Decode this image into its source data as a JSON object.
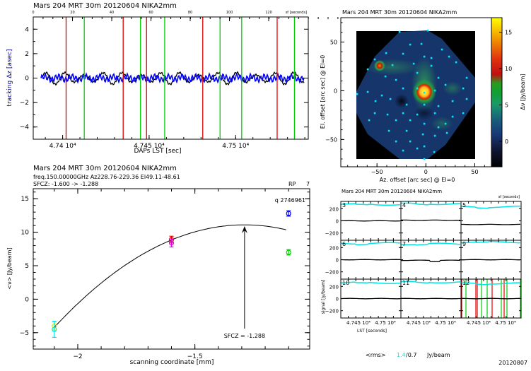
{
  "footer": {
    "rms_label": "<rms>",
    "rms_value_cyan": "1.4",
    "rms_value_rest": "/0.7",
    "rms_unit": "Jy/beam",
    "date": "20120807",
    "rms_color": "#00e5e5"
  },
  "chart_data": [
    {
      "id": "tracking",
      "type": "line",
      "title": "Mars      204 MRT 30m   20120604 NIKA2mm",
      "xlabel": "DAPs LST [sec]",
      "ylabel": "tracking Δz [asec]",
      "xlim": [
        47383,
        47542
      ],
      "ylim": [
        -5,
        5
      ],
      "x_tick_labels": [
        "4.74 10^4",
        "4.745 10^4",
        "4.75 10^4"
      ],
      "x_ticks": [
        47400,
        47450,
        47500
      ],
      "y_ticks": [
        -4,
        -2,
        0,
        2,
        4
      ],
      "top_axis_label": "sf [seconds]",
      "top_axis_ticks": [
        "0",
        "20",
        "40",
        "60",
        "80",
        "100",
        "120"
      ],
      "series": [
        {
          "name": "black trace",
          "color": "#000000",
          "mean": 0.0,
          "amplitude": 0.5
        },
        {
          "name": "blue trace",
          "color": "#0000ff",
          "mean": 0.0,
          "amplitude": 0.35
        }
      ],
      "red_lines_x": [
        47402,
        47435,
        47448.5,
        47481,
        47524
      ],
      "green_lines_x": [
        47412.5,
        47445,
        47459,
        47491,
        47503.5,
        47534
      ],
      "ylabel_color": "#0000aa"
    },
    {
      "id": "map",
      "type": "heatmap",
      "title": "Mars      204 MRT 30m   20120604 NIKA2mm",
      "xlabel": "Az. offset [arc sec] @ El=0",
      "ylabel": "El. offset [arc sec] @ El=0",
      "xlim": [
        -87,
        67
      ],
      "ylim": [
        -78,
        75
      ],
      "x_ticks": [
        -50,
        0,
        50
      ],
      "y_ticks": [
        -50,
        0,
        50
      ],
      "colorbar": {
        "label": "Δν [Jy/beam]",
        "range": [
          -3.5,
          17
        ],
        "ticks": [
          0,
          5,
          10,
          15
        ]
      },
      "sources": [
        {
          "name": "Mars peak",
          "az": 0,
          "el": 2,
          "value": 16
        },
        {
          "name": "secondary",
          "az": -47,
          "el": 28,
          "value": 10
        }
      ],
      "marker_color": "#00e5ff"
    },
    {
      "id": "focus",
      "type": "scatter",
      "header_lines": [
        "Mars      204 MRT 30m   20120604 NIKA2mm",
        "freq.150.00000GHz   Az228.76-229.36 El49.11-48.61",
        "SFCZ: -1.600 -> -1.288"
      ],
      "corner_label_right": "RP",
      "corner_value_right": "7",
      "scan_label": "q 2746961",
      "xlabel": "scanning coordinate [mm]",
      "ylabel": "<ν> [Jy/beam]",
      "xlim": [
        -2.19,
        -1.01
      ],
      "ylim": [
        -7.45,
        16.5
      ],
      "x_ticks": [
        -2,
        -1.5
      ],
      "x_tick_labels": [
        "-2",
        "-1.5"
      ],
      "y_ticks": [
        -5,
        0,
        5,
        10,
        15
      ],
      "points": [
        {
          "x": -2.1,
          "y": -4.0,
          "err": 0.6,
          "color": "#e5e500"
        },
        {
          "x": -2.1,
          "y": -4.5,
          "err": 1.2,
          "color": "#00e5e5"
        },
        {
          "x": -1.6,
          "y": 8.9,
          "err": 0.5,
          "color": "#e50000"
        },
        {
          "x": -1.6,
          "y": 8.4,
          "err": 0.6,
          "color": "#e500e5"
        },
        {
          "x": -1.1,
          "y": 12.8,
          "err": 0.4,
          "color": "#0000e5"
        },
        {
          "x": -1.1,
          "y": 7.0,
          "err": 0.4,
          "color": "#00d000"
        }
      ],
      "fit": {
        "type": "parabola",
        "vertex_x": -1.288,
        "vertex_y": 11.1,
        "start_x": -2.1,
        "start_y": -4.2
      },
      "annotation": {
        "text": "SFCZ = -1.288",
        "x": -1.288
      }
    },
    {
      "id": "timelines",
      "type": "line",
      "title": "Mars      204 MRT 30m   20120604 NIKA2mm",
      "ylabel": "signal [Jy/beam]",
      "xlabel": "LST [seconds]",
      "ylim": [
        -320,
        320
      ],
      "y_ticks": [
        -200,
        0,
        200
      ],
      "y_tick_labels": [
        "-200",
        "0",
        "200"
      ],
      "x_tick_labels": [
        "4.745 10^4",
        "4.75 10^4"
      ],
      "top_axis_label": "sf [seconds]",
      "panels": [
        {
          "id": "3",
          "cyan_level": 270,
          "black_level": 0
        },
        {
          "id": "4",
          "cyan_level": 280,
          "black_level": 10
        },
        {
          "id": "5",
          "cyan_level": 230,
          "black_level": -60
        },
        {
          "id": "6",
          "cyan_level": 270,
          "black_level": 0
        },
        {
          "id": "7",
          "cyan_level": 260,
          "black_level": -10
        },
        {
          "id": "9",
          "cyan_level": 290,
          "black_level": 0
        },
        {
          "id": "10",
          "cyan_level": 260,
          "black_level": 0
        },
        {
          "id": "11",
          "cyan_level": 270,
          "black_level": 0
        },
        {
          "id": "12",
          "cyan_level": 250,
          "black_level": 0
        }
      ]
    }
  ]
}
